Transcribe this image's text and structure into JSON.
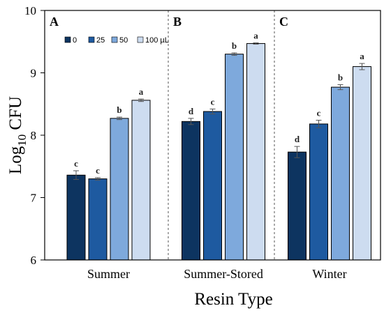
{
  "chart_data": {
    "type": "bar",
    "ylabel_base": "Log",
    "ylabel_sub": "10",
    "ylabel_rest": " CFU",
    "xlabel": "Resin Type",
    "ylim": [
      6,
      10
    ],
    "yticks": [
      "6",
      "7",
      "8",
      "9",
      "10"
    ],
    "legend": {
      "placement": "top-left",
      "entries": [
        "0",
        "25",
        "50",
        "100 µL"
      ]
    },
    "colors": [
      "#0d3460",
      "#1e5aa0",
      "#7ea9dc",
      "#cddcf0"
    ],
    "panels": [
      {
        "letter": "A",
        "category": "Summer",
        "values": [
          7.36,
          7.3,
          8.27,
          8.56
        ],
        "errors": [
          0.07,
          0.02,
          0.02,
          0.02
        ],
        "letters": [
          "c",
          "c",
          "b",
          "a"
        ]
      },
      {
        "letter": "B",
        "category": "Summer-Stored",
        "values": [
          8.22,
          8.38,
          9.3,
          9.47
        ],
        "errors": [
          0.05,
          0.04,
          0.02,
          0.01
        ],
        "letters": [
          "d",
          "c",
          "b",
          "a"
        ]
      },
      {
        "letter": "C",
        "category": "Winter",
        "values": [
          7.73,
          8.18,
          8.77,
          9.1
        ],
        "errors": [
          0.09,
          0.06,
          0.04,
          0.05
        ],
        "letters": [
          "d",
          "c",
          "b",
          "a"
        ]
      }
    ]
  }
}
